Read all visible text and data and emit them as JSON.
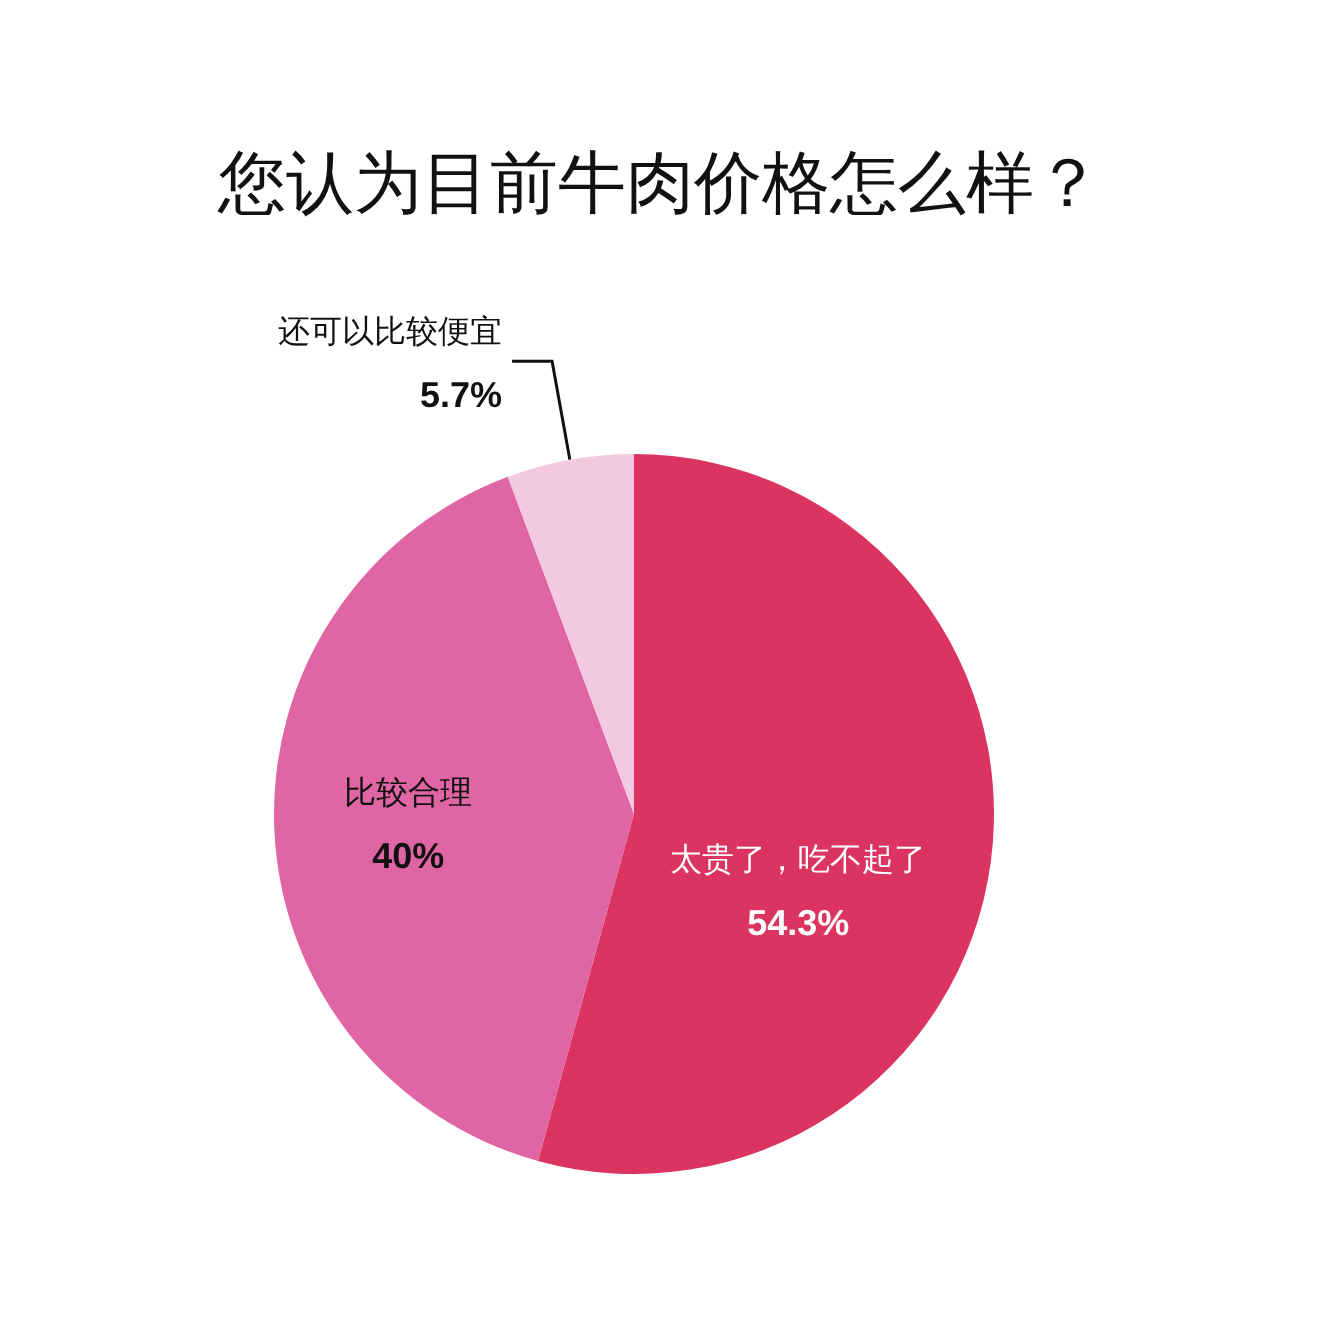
{
  "chart_data": {
    "type": "pie",
    "title": "您认为目前牛肉价格怎么样？",
    "categories": [
      "太贵了，吃不起了",
      "比较合理",
      "还可以比较便宜"
    ],
    "values": [
      54.3,
      40,
      5.7
    ],
    "value_labels": [
      "54.3%",
      "40%",
      "5.7%"
    ],
    "colors": [
      "#dc3461",
      "#e065a4",
      "#f3c9df"
    ],
    "legend": false
  }
}
